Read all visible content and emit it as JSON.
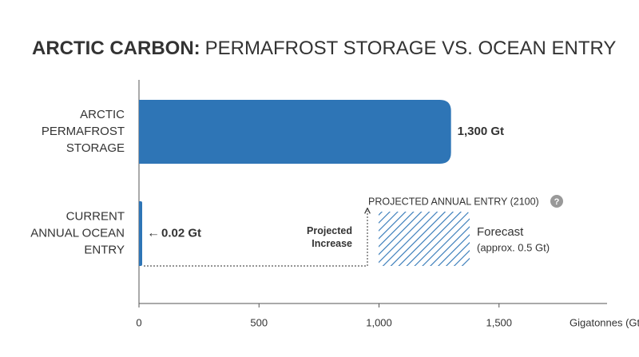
{
  "chart_data": {
    "type": "bar",
    "orientation": "horizontal",
    "title_bold": "ARCTIC CARBON:",
    "title": "PERMAFROST STORAGE VS. OCEAN ENTRY",
    "categories": [
      "ARCTIC PERMAFROST STORAGE",
      "CURRENT ANNUAL OCEAN ENTRY"
    ],
    "values": [
      1300,
      0.02
    ],
    "value_labels": [
      "1,300 Gt",
      "0.02 Gt"
    ],
    "color": "#2e75b6",
    "xlim": [
      0,
      1950
    ],
    "xticks": [
      0,
      500,
      {
        "value": 1000,
        "label": "1,000"
      },
      {
        "value": 1500,
        "label": "1,500"
      }
    ],
    "x_label": "Gigatonnes (Gt)",
    "annotations": {
      "projected_title": "PROJECTED ANNUAL ENTRY (2100)",
      "help_icon": "?",
      "projected_increase": "Projected Increase",
      "forecast": "Forecast",
      "forecast_note": "(approx. 0.5 Gt)"
    }
  }
}
